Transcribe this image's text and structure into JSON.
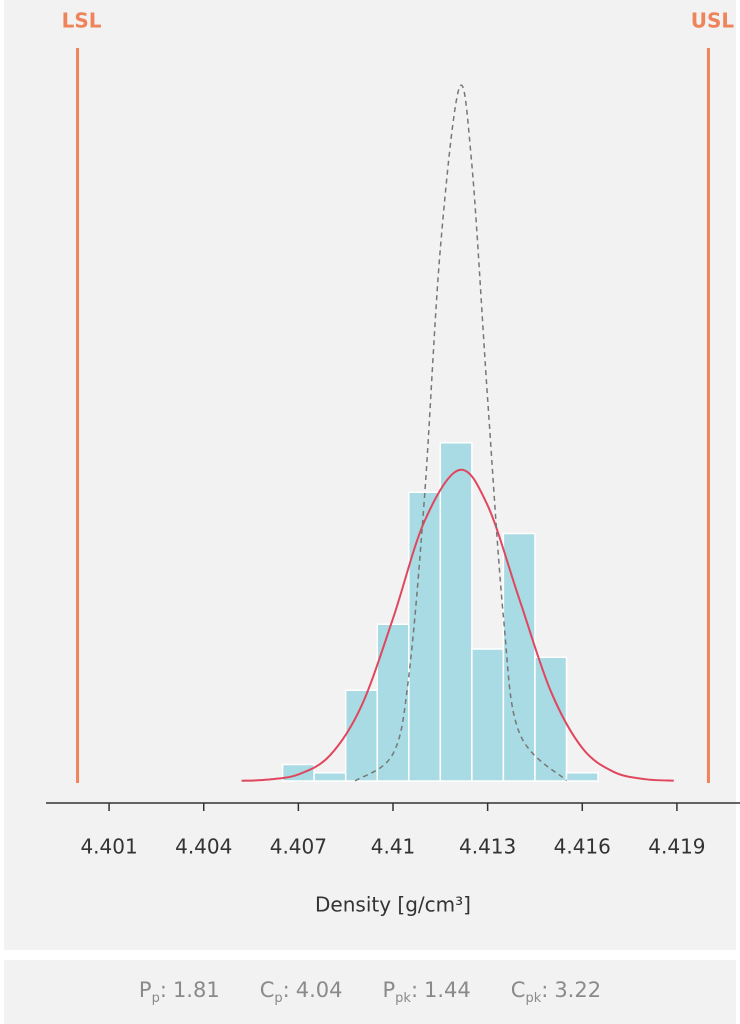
{
  "chart_data": {
    "type": "histogram",
    "x_label": "Density [g/cm³]",
    "bins": [
      4.4065,
      4.4075,
      4.4085,
      4.4095,
      4.4105,
      4.4115,
      4.4125,
      4.4135,
      4.4145,
      4.4155,
      4.4165
    ],
    "values": [
      2,
      1,
      11,
      19,
      35,
      41,
      16,
      30,
      15,
      1
    ],
    "color": "#a8dbe3",
    "xlim": [
      4.399,
      4.421
    ],
    "xticks": [
      4.401,
      4.404,
      4.407,
      4.41,
      4.413,
      4.416,
      4.419
    ],
    "ylim": [
      0,
      90
    ],
    "lines": [
      {
        "color": "#e0475e",
        "dash": false,
        "x": [
          4.4052,
          4.406,
          4.407,
          4.408,
          4.409,
          4.41,
          4.411,
          4.4121,
          4.413,
          4.414,
          4.415,
          4.416,
          4.417,
          4.418,
          4.4189
        ],
        "values": [
          0.03,
          0.16,
          0.8,
          3.1,
          9.1,
          19.7,
          31.5,
          37.7,
          33.4,
          22.1,
          10.9,
          4,
          1.1,
          0.22,
          0.04
        ]
      },
      {
        "color": "#777777",
        "dash": true,
        "x": [
          4.4088,
          4.41,
          4.4105,
          4.411,
          4.4115,
          4.4121,
          4.4125,
          4.413,
          4.4135,
          4.414,
          4.4155
        ],
        "values": [
          0.02,
          3.3,
          12.7,
          34.5,
          64.5,
          84,
          74.7,
          46.3,
          19.9,
          5.9,
          0.05
        ]
      }
    ],
    "spec_limits": [
      {
        "label": "LSL",
        "value": 4.4
      },
      {
        "label": "USL",
        "value": 4.42
      }
    ],
    "spec_color": "#ef845a"
  },
  "footer": {
    "stats": [
      {
        "symbol": "P",
        "sub": "p",
        "separator": ":",
        "value": "1.81"
      },
      {
        "symbol": "C",
        "sub": "p",
        "separator": ":",
        "value": "4.04"
      },
      {
        "symbol": "P",
        "sub": "pk",
        "separator": ":",
        "value": "1.44"
      },
      {
        "symbol": "C",
        "sub": "pk",
        "separator": ":",
        "value": "3.22"
      }
    ]
  }
}
